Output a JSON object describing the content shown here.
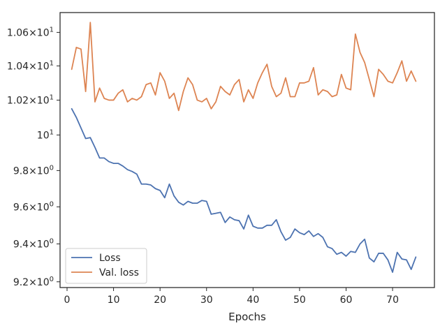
{
  "chart_data": {
    "type": "line",
    "title": "",
    "xlabel": "Epochs",
    "ylabel": "",
    "xlim": [
      -1.5,
      79
    ],
    "ylim": [
      9.17,
      10.72
    ],
    "y_scale": "log",
    "grid": false,
    "legend_position": "lower-left",
    "x_ticks": [
      0,
      10,
      20,
      30,
      40,
      50,
      60,
      70
    ],
    "y_ticks": [
      {
        "value": 9.2,
        "mantissa": "9.2",
        "exponent": "0"
      },
      {
        "value": 9.4,
        "mantissa": "9.4",
        "exponent": "0"
      },
      {
        "value": 9.6,
        "mantissa": "9.6",
        "exponent": "0"
      },
      {
        "value": 9.8,
        "mantissa": "9.8",
        "exponent": "0"
      },
      {
        "value": 10.0,
        "mantissa": "",
        "exponent": "1"
      },
      {
        "value": 10.2,
        "mantissa": "1.02",
        "exponent": "1"
      },
      {
        "value": 10.4,
        "mantissa": "1.04",
        "exponent": "1"
      },
      {
        "value": 10.6,
        "mantissa": "1.06",
        "exponent": "1"
      }
    ],
    "x": [
      1,
      2,
      3,
      4,
      5,
      6,
      7,
      8,
      9,
      10,
      11,
      12,
      13,
      14,
      15,
      16,
      17,
      18,
      19,
      20,
      21,
      22,
      23,
      24,
      25,
      26,
      27,
      28,
      29,
      30,
      31,
      32,
      33,
      34,
      35,
      36,
      37,
      38,
      39,
      40,
      41,
      42,
      43,
      44,
      45,
      46,
      47,
      48,
      49,
      50,
      51,
      52,
      53,
      54,
      55,
      56,
      57,
      58,
      59,
      60,
      61,
      62,
      63,
      64,
      65,
      66,
      67,
      68,
      69,
      70,
      71,
      72,
      73,
      74,
      75
    ],
    "series": [
      {
        "name": "Loss",
        "color": "#4c72b0",
        "values": [
          10.15,
          10.1,
          10.04,
          9.98,
          9.985,
          9.93,
          9.87,
          9.87,
          9.85,
          9.84,
          9.84,
          9.825,
          9.805,
          9.795,
          9.78,
          9.725,
          9.725,
          9.72,
          9.7,
          9.69,
          9.65,
          9.725,
          9.66,
          9.625,
          9.61,
          9.63,
          9.62,
          9.62,
          9.635,
          9.63,
          9.56,
          9.565,
          9.57,
          9.515,
          9.545,
          9.53,
          9.525,
          9.48,
          9.555,
          9.495,
          9.485,
          9.485,
          9.5,
          9.5,
          9.53,
          9.465,
          9.42,
          9.435,
          9.48,
          9.46,
          9.45,
          9.47,
          9.44,
          9.455,
          9.435,
          9.385,
          9.375,
          9.345,
          9.355,
          9.335,
          9.36,
          9.355,
          9.4,
          9.425,
          9.325,
          9.305,
          9.35,
          9.35,
          9.315,
          9.25,
          9.355,
          9.32,
          9.315,
          9.265,
          9.33
        ]
      },
      {
        "name": "Val. loss",
        "color": "#dd8452",
        "values": [
          10.38,
          10.51,
          10.5,
          10.25,
          10.66,
          10.19,
          10.27,
          10.21,
          10.2,
          10.2,
          10.24,
          10.26,
          10.19,
          10.21,
          10.2,
          10.22,
          10.29,
          10.3,
          10.23,
          10.36,
          10.31,
          10.21,
          10.24,
          10.14,
          10.25,
          10.33,
          10.29,
          10.2,
          10.19,
          10.21,
          10.15,
          10.19,
          10.28,
          10.25,
          10.23,
          10.29,
          10.32,
          10.19,
          10.26,
          10.21,
          10.3,
          10.36,
          10.41,
          10.28,
          10.22,
          10.24,
          10.33,
          10.22,
          10.22,
          10.3,
          10.3,
          10.31,
          10.39,
          10.23,
          10.26,
          10.25,
          10.22,
          10.23,
          10.35,
          10.27,
          10.26,
          10.59,
          10.48,
          10.42,
          10.32,
          10.22,
          10.38,
          10.35,
          10.31,
          10.3,
          10.36,
          10.43,
          10.31,
          10.37,
          10.31
        ]
      }
    ]
  }
}
